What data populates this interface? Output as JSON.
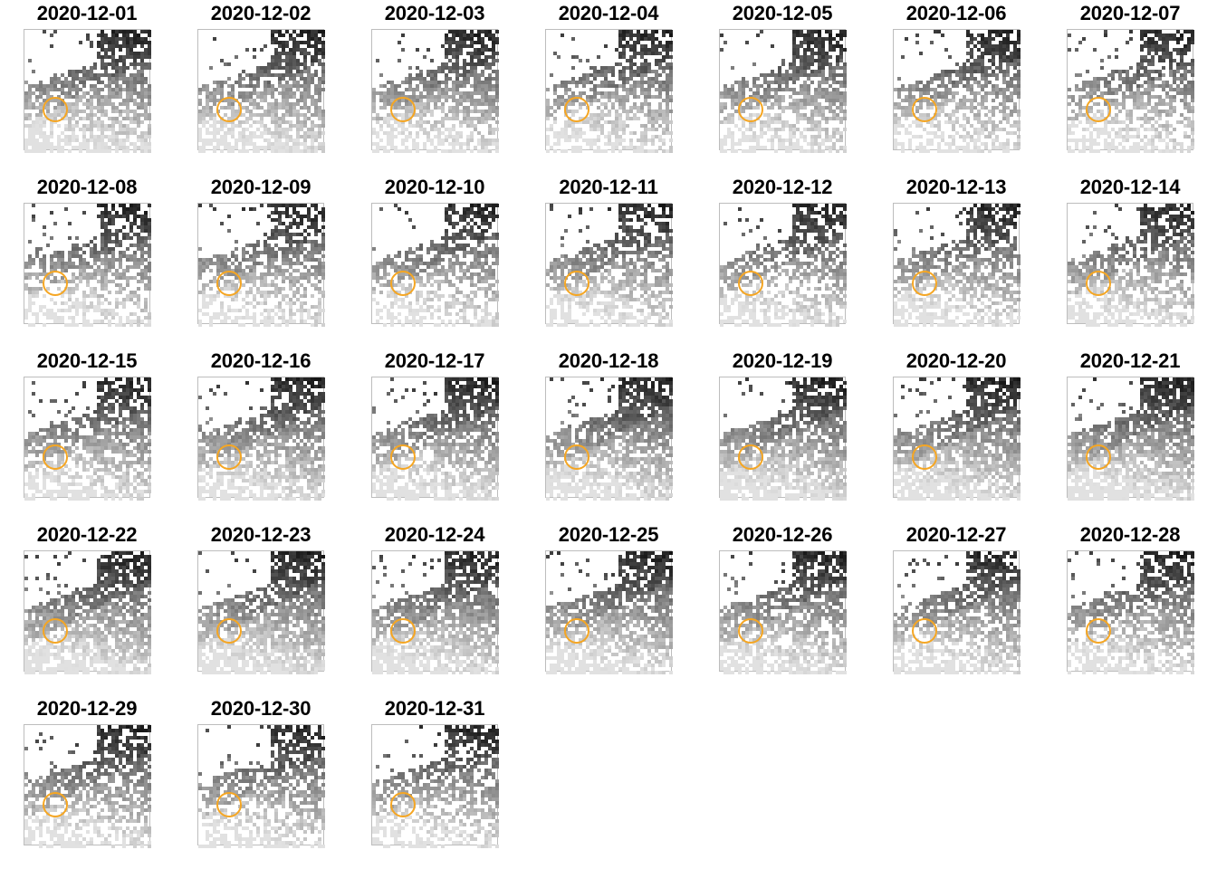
{
  "figure": {
    "highlight_color": "#f5a623",
    "panels": [
      {
        "date": "2020-12-01"
      },
      {
        "date": "2020-12-02"
      },
      {
        "date": "2020-12-03"
      },
      {
        "date": "2020-12-04"
      },
      {
        "date": "2020-12-05"
      },
      {
        "date": "2020-12-06"
      },
      {
        "date": "2020-12-07"
      },
      {
        "date": "2020-12-08"
      },
      {
        "date": "2020-12-09"
      },
      {
        "date": "2020-12-10"
      },
      {
        "date": "2020-12-11"
      },
      {
        "date": "2020-12-12"
      },
      {
        "date": "2020-12-13"
      },
      {
        "date": "2020-12-14"
      },
      {
        "date": "2020-12-15"
      },
      {
        "date": "2020-12-16"
      },
      {
        "date": "2020-12-17"
      },
      {
        "date": "2020-12-18"
      },
      {
        "date": "2020-12-19"
      },
      {
        "date": "2020-12-20"
      },
      {
        "date": "2020-12-21"
      },
      {
        "date": "2020-12-22"
      },
      {
        "date": "2020-12-23"
      },
      {
        "date": "2020-12-24"
      },
      {
        "date": "2020-12-25"
      },
      {
        "date": "2020-12-26"
      },
      {
        "date": "2020-12-27"
      },
      {
        "date": "2020-12-28"
      },
      {
        "date": "2020-12-29"
      },
      {
        "date": "2020-12-30"
      },
      {
        "date": "2020-12-31"
      }
    ]
  }
}
